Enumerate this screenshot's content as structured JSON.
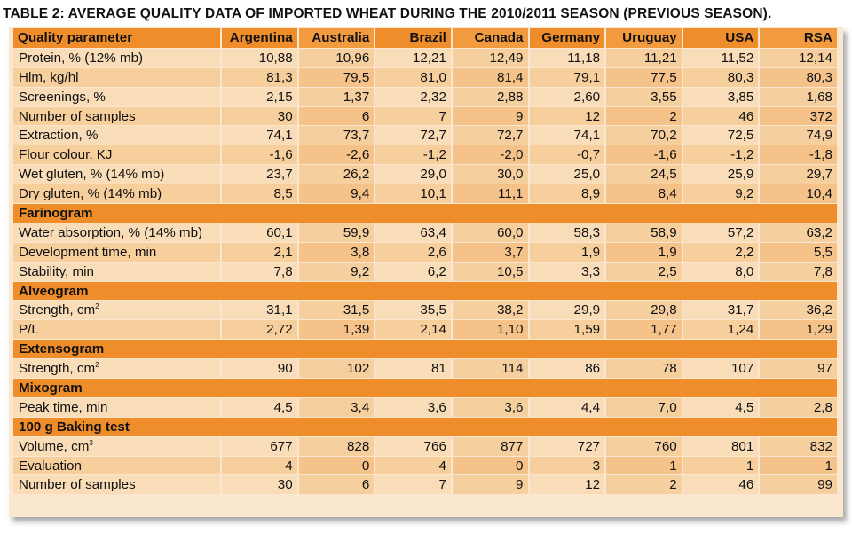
{
  "title": "TABLE 2: AVERAGE QUALITY DATA OF IMPORTED WHEAT DURING THE 2010/2011 SEASON (PREVIOUS SEASON).",
  "header": [
    "Quality parameter",
    "Argentina",
    "Australia",
    "Brazil",
    "Canada",
    "Germany",
    "Uruguay",
    "USA",
    "RSA"
  ],
  "rows": [
    {
      "label": "Protein, % (12% mb)",
      "values": [
        "10,88",
        "10,96",
        "12,21",
        "12,49",
        "11,18",
        "11,21",
        "11,52",
        "12,14"
      ]
    },
    {
      "label": "Hlm, kg/hl",
      "values": [
        "81,3",
        "79,5",
        "81,0",
        "81,4",
        "79,1",
        "77,5",
        "80,3",
        "80,3"
      ]
    },
    {
      "label": "Screenings, %",
      "values": [
        "2,15",
        "1,37",
        "2,32",
        "2,88",
        "2,60",
        "3,55",
        "3,85",
        "1,68"
      ]
    },
    {
      "label": "Number of samples",
      "values": [
        "30",
        "6",
        "7",
        "9",
        "12",
        "2",
        "46",
        "372"
      ]
    },
    {
      "label": "Extraction, %",
      "values": [
        "74,1",
        "73,7",
        "72,7",
        "72,7",
        "74,1",
        "70,2",
        "72,5",
        "74,9"
      ]
    },
    {
      "label": "Flour colour, KJ",
      "values": [
        "-1,6",
        "-2,6",
        "-1,2",
        "-2,0",
        "-0,7",
        "-1,6",
        "-1,2",
        "-1,8"
      ]
    },
    {
      "label": "Wet gluten, % (14% mb)",
      "values": [
        "23,7",
        "26,2",
        "29,0",
        "30,0",
        "25,0",
        "24,5",
        "25,9",
        "29,7"
      ]
    },
    {
      "label": "Dry gluten, % (14% mb)",
      "values": [
        "8,5",
        "9,4",
        "10,1",
        "11,1",
        "8,9",
        "8,4",
        "9,2",
        "10,4"
      ]
    },
    {
      "section": "Farinogram"
    },
    {
      "label": "Water absorption, % (14% mb)",
      "values": [
        "60,1",
        "59,9",
        "63,4",
        "60,0",
        "58,3",
        "58,9",
        "57,2",
        "63,2"
      ]
    },
    {
      "label": "Development time, min",
      "values": [
        "2,1",
        "3,8",
        "2,6",
        "3,7",
        "1,9",
        "1,9",
        "2,2",
        "5,5"
      ]
    },
    {
      "label": "Stability, min",
      "values": [
        "7,8",
        "9,2",
        "6,2",
        "10,5",
        "3,3",
        "2,5",
        "8,0",
        "7,8"
      ]
    },
    {
      "section": "Alveogram"
    },
    {
      "label": "Strength, cm",
      "sup": "2",
      "values": [
        "31,1",
        "31,5",
        "35,5",
        "38,2",
        "29,9",
        "29,8",
        "31,7",
        "36,2"
      ]
    },
    {
      "label": "P/L",
      "values": [
        "2,72",
        "1,39",
        "2,14",
        "1,10",
        "1,59",
        "1,77",
        "1,24",
        "1,29"
      ]
    },
    {
      "section": "Extensogram"
    },
    {
      "label": "Strength, cm",
      "sup": "2",
      "values": [
        "90",
        "102",
        "81",
        "114",
        "86",
        "78",
        "107",
        "97"
      ]
    },
    {
      "section": "Mixogram"
    },
    {
      "label": "Peak time, min",
      "values": [
        "4,5",
        "3,4",
        "3,6",
        "3,6",
        "4,4",
        "7,0",
        "4,5",
        "2,8"
      ]
    },
    {
      "section": "100 g Baking test"
    },
    {
      "label": "Volume, cm",
      "sup": "3",
      "values": [
        "677",
        "828",
        "766",
        "877",
        "727",
        "760",
        "801",
        "832"
      ]
    },
    {
      "label": "Evaluation",
      "values": [
        "4",
        "0",
        "4",
        "0",
        "3",
        "1",
        "1",
        "1"
      ]
    },
    {
      "label": "Number of samples",
      "values": [
        "30",
        "6",
        "7",
        "9",
        "12",
        "2",
        "46",
        "99"
      ]
    }
  ]
}
